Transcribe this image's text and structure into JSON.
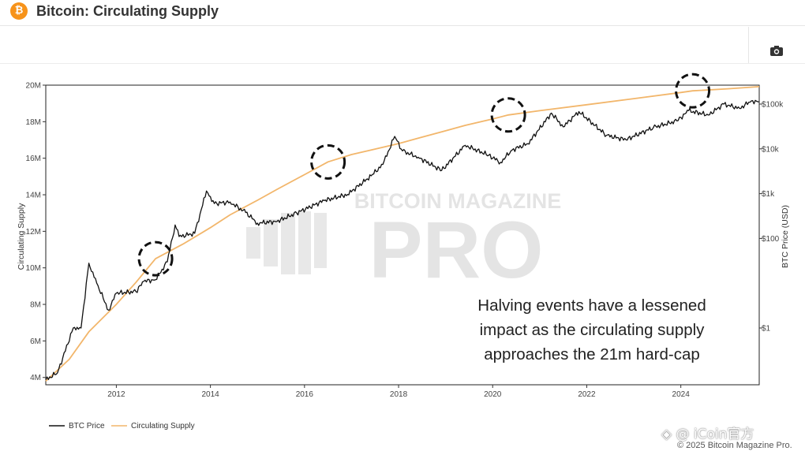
{
  "header": {
    "icon": "bitcoin-icon",
    "badge_glyph": "₿",
    "title": "Bitcoin: Circulating Supply"
  },
  "toolbar": {
    "camera_icon": "camera-icon"
  },
  "watermark": {
    "line1": "BITCOIN MAGAZINE",
    "line2": "PRO"
  },
  "corner_watermark": "◈ @ iCoin官方",
  "annotation": {
    "lines": [
      "Halving events have a lessened",
      "impact as the circulating supply",
      "approaches the 21m hard-cap"
    ]
  },
  "footer": {
    "copyright": "© 2025 Bitcoin Magazine Pro."
  },
  "colors": {
    "price": "#111111",
    "supply": "#f2b66b",
    "brand": "#f7931a"
  },
  "chart_data": {
    "type": "line",
    "x_range": [
      "2010-07",
      "2025-09"
    ],
    "x_ticks": [
      "2012",
      "2014",
      "2016",
      "2018",
      "2020",
      "2022",
      "2024"
    ],
    "y_left": {
      "title": "Circulating Supply",
      "range": [
        3600000,
        20000000
      ],
      "ticks": [
        "4M",
        "6M",
        "8M",
        "10M",
        "12M",
        "14M",
        "16M",
        "18M",
        "20M"
      ],
      "tick_values": [
        4000000,
        6000000,
        8000000,
        10000000,
        12000000,
        14000000,
        16000000,
        18000000,
        20000000
      ]
    },
    "y_right": {
      "title": "BTC Price (USD)",
      "scale": "log",
      "ticks": [
        "$1",
        "$100",
        "$1k",
        "$10k",
        "$100k"
      ],
      "tick_values": [
        1,
        100,
        1000,
        10000,
        100000
      ]
    },
    "legend": {
      "placement": "bottom-left",
      "entries": [
        "BTC Price",
        "Circulating Supply"
      ]
    },
    "halving_markers": [
      "2012-11",
      "2016-07",
      "2020-05",
      "2024-04"
    ],
    "series": [
      {
        "name": "Circulating Supply",
        "axis": "left",
        "points": [
          [
            "2010-07",
            3800000
          ],
          [
            "2011-01",
            5000000
          ],
          [
            "2011-06",
            6500000
          ],
          [
            "2012-01",
            8000000
          ],
          [
            "2012-06",
            9200000
          ],
          [
            "2012-11",
            10500000
          ],
          [
            "2013-06",
            11300000
          ],
          [
            "2014-01",
            12200000
          ],
          [
            "2014-06",
            12900000
          ],
          [
            "2015-01",
            13700000
          ],
          [
            "2015-06",
            14300000
          ],
          [
            "2016-01",
            15100000
          ],
          [
            "2016-07",
            15800000
          ],
          [
            "2017-01",
            16200000
          ],
          [
            "2017-06",
            16450000
          ],
          [
            "2018-01",
            16800000
          ],
          [
            "2018-06",
            17100000
          ],
          [
            "2019-01",
            17500000
          ],
          [
            "2019-06",
            17800000
          ],
          [
            "2020-01",
            18150000
          ],
          [
            "2020-05",
            18370000
          ],
          [
            "2021-01",
            18600000
          ],
          [
            "2022-01",
            18930000
          ],
          [
            "2023-01",
            19260000
          ],
          [
            "2024-01",
            19600000
          ],
          [
            "2024-04",
            19690000
          ],
          [
            "2025-01",
            19800000
          ],
          [
            "2025-09",
            19920000
          ]
        ]
      },
      {
        "name": "BTC Price",
        "axis": "right",
        "points": [
          [
            "2010-07",
            0.07
          ],
          [
            "2010-10",
            0.1
          ],
          [
            "2011-02",
            1
          ],
          [
            "2011-04",
            1
          ],
          [
            "2011-06",
            28
          ],
          [
            "2011-08",
            10
          ],
          [
            "2011-11",
            2.5
          ],
          [
            "2012-01",
            6
          ],
          [
            "2012-06",
            6.5
          ],
          [
            "2012-08",
            11
          ],
          [
            "2012-11",
            12
          ],
          [
            "2013-02",
            30
          ],
          [
            "2013-04",
            200
          ],
          [
            "2013-05",
            110
          ],
          [
            "2013-09",
            130
          ],
          [
            "2013-12",
            1150
          ],
          [
            "2014-02",
            600
          ],
          [
            "2014-06",
            650
          ],
          [
            "2014-10",
            380
          ],
          [
            "2015-01",
            220
          ],
          [
            "2015-06",
            240
          ],
          [
            "2015-11",
            370
          ],
          [
            "2016-06",
            700
          ],
          [
            "2016-12",
            960
          ],
          [
            "2017-06",
            2500
          ],
          [
            "2017-09",
            4500
          ],
          [
            "2017-12",
            19000
          ],
          [
            "2018-02",
            9000
          ],
          [
            "2018-06",
            6500
          ],
          [
            "2018-12",
            3300
          ],
          [
            "2019-06",
            12000
          ],
          [
            "2019-12",
            7200
          ],
          [
            "2020-03",
            5000
          ],
          [
            "2020-06",
            9500
          ],
          [
            "2020-10",
            13000
          ],
          [
            "2021-04",
            63000
          ],
          [
            "2021-07",
            31000
          ],
          [
            "2021-11",
            68000
          ],
          [
            "2022-06",
            20000
          ],
          [
            "2022-11",
            16000
          ],
          [
            "2023-06",
            30000
          ],
          [
            "2023-12",
            42000
          ],
          [
            "2024-03",
            71000
          ],
          [
            "2024-08",
            57000
          ],
          [
            "2024-12",
            100000
          ],
          [
            "2025-04",
            80000
          ],
          [
            "2025-07",
            118000
          ],
          [
            "2025-09",
            112000
          ]
        ]
      }
    ]
  }
}
